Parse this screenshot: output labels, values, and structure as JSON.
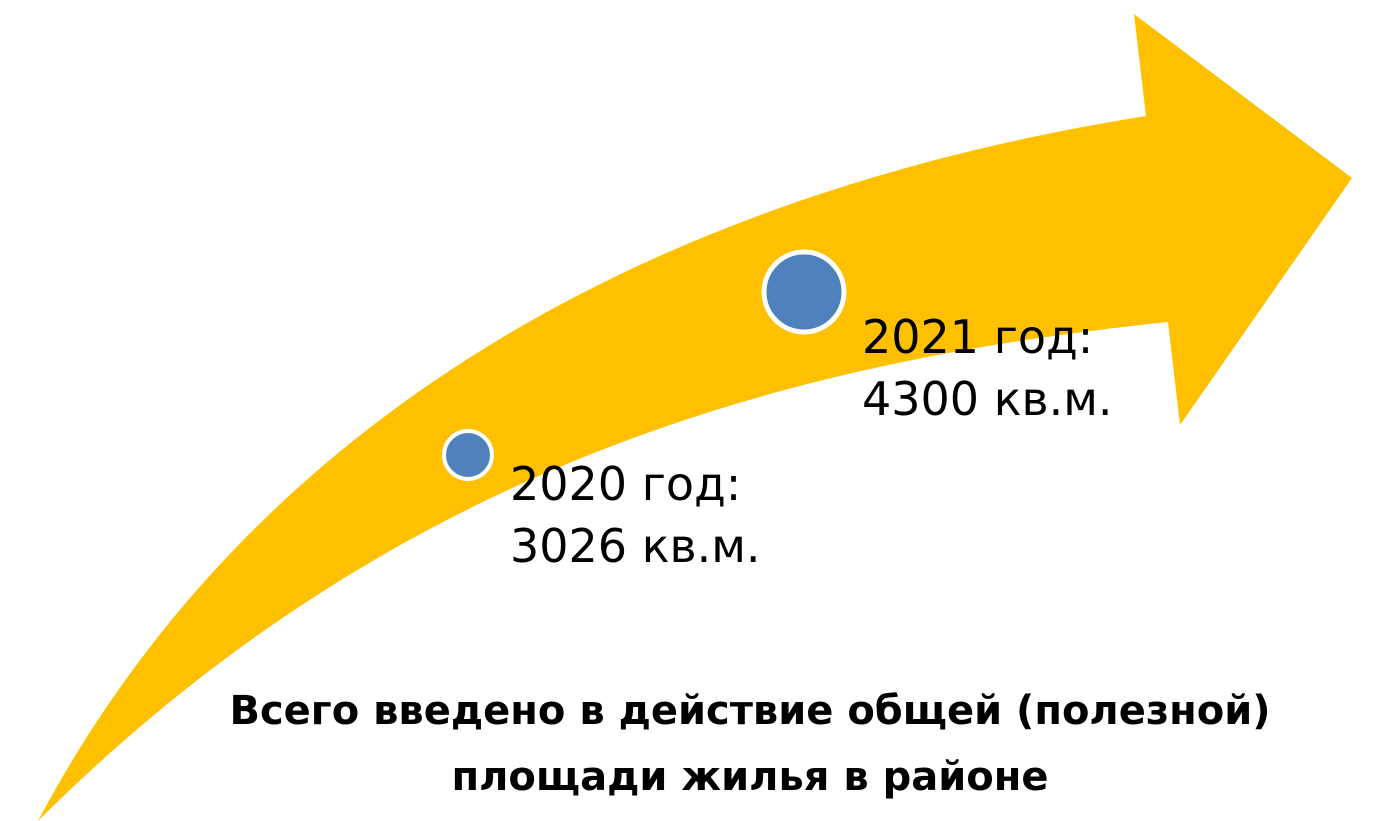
{
  "diagram": {
    "colors": {
      "arrow": "#FFC000",
      "dot": "#4F81BD",
      "dot_outline": "#FFFFFF",
      "text": "#000000"
    },
    "milestones": [
      {
        "year_label": "2020 год:",
        "value_label": "3026 кв.м.",
        "value": 3026
      },
      {
        "year_label": "2021 год:",
        "value_label": "4300 кв.м.",
        "value": 4300
      }
    ],
    "caption_line1": "Всего введено в действие общей (полезной)",
    "caption_line2": "площади жилья в районе"
  }
}
